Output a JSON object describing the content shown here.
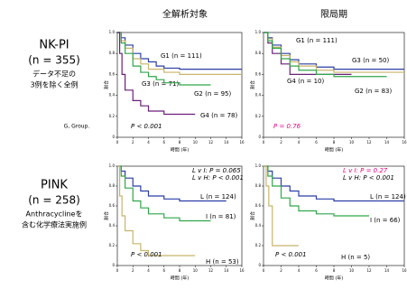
{
  "columns": [
    "全解析対象",
    "限局期"
  ],
  "row_labels": [
    [
      "NK-PI",
      "(n = 355)",
      "データ不足の",
      "3例を除く全例"
    ],
    [
      "PINK",
      "(n = 258)",
      "Anthracyclineを",
      "含む化学療法実施例"
    ]
  ],
  "note": "G, Group.",
  "chart_data": [
    {
      "type": "line",
      "step": true,
      "xlabel": "時間 (年)",
      "ylabel": "割合",
      "xlim": [
        0,
        16
      ],
      "xticks": [
        0,
        2,
        4,
        6,
        8,
        10,
        12,
        14,
        16
      ],
      "ylim": [
        0,
        1
      ],
      "yticks": [
        0,
        0.2,
        0.4,
        0.6,
        0.8,
        {
          "value": 1,
          "label": "1.0"
        }
      ],
      "series": [
        {
          "name": "G1 (n = 111)",
          "color": "#2b3fa6",
          "x": [
            0,
            0.5,
            1,
            2,
            3,
            4,
            5,
            6,
            8,
            10,
            16
          ],
          "values": [
            1,
            0.95,
            0.88,
            0.8,
            0.75,
            0.72,
            0.68,
            0.66,
            0.65,
            0.65,
            0.65
          ]
        },
        {
          "name": "G3 (n = 71)",
          "color": "#c8b56a",
          "x": [
            0,
            0.5,
            1,
            2,
            3,
            4,
            6,
            8,
            10,
            16
          ],
          "values": [
            1,
            0.92,
            0.85,
            0.75,
            0.7,
            0.65,
            0.62,
            0.6,
            0.6,
            0.6
          ]
        },
        {
          "name": "G2 (n = 95)",
          "color": "#2fa64a",
          "x": [
            0,
            0.5,
            1,
            2,
            3,
            4,
            5,
            6,
            8,
            12
          ],
          "values": [
            1,
            0.9,
            0.8,
            0.68,
            0.62,
            0.58,
            0.55,
            0.52,
            0.5,
            0.5
          ]
        },
        {
          "name": "G4 (n = 78)",
          "color": "#6a1f7a",
          "x": [
            0,
            0.3,
            0.6,
            1,
            2,
            3,
            4,
            6,
            10
          ],
          "values": [
            1,
            0.8,
            0.6,
            0.45,
            0.35,
            0.3,
            0.25,
            0.22,
            0.22
          ]
        }
      ],
      "annotations": [
        {
          "text": "P < 0.001",
          "color": "#000000"
        }
      ]
    },
    {
      "type": "line",
      "step": true,
      "xlabel": "時間 (年)",
      "ylabel": "割合",
      "xlim": [
        0,
        16
      ],
      "xticks": [
        0,
        2,
        4,
        6,
        8,
        10,
        12,
        14,
        16
      ],
      "ylim": [
        0,
        1
      ],
      "yticks": [
        0,
        0.2,
        0.4,
        0.6,
        0.8,
        {
          "value": 1,
          "label": "1.0"
        }
      ],
      "series": [
        {
          "name": "G1 (n = 111)",
          "color": "#2b3fa6",
          "x": [
            0,
            0.5,
            1,
            2,
            3,
            4,
            6,
            8,
            16
          ],
          "values": [
            1,
            0.95,
            0.88,
            0.8,
            0.74,
            0.7,
            0.67,
            0.65,
            0.65
          ]
        },
        {
          "name": "G3 (n = 50)",
          "color": "#c8b56a",
          "x": [
            0,
            0.5,
            1,
            2,
            3,
            4,
            6,
            8,
            16
          ],
          "values": [
            1,
            0.94,
            0.86,
            0.78,
            0.72,
            0.68,
            0.64,
            0.62,
            0.62
          ]
        },
        {
          "name": "G4 (n = 10)",
          "color": "#6a1f7a",
          "x": [
            0,
            0.5,
            1,
            2,
            3,
            10
          ],
          "values": [
            1,
            0.9,
            0.8,
            0.7,
            0.6,
            0.6
          ]
        },
        {
          "name": "G2 (n = 83)",
          "color": "#2fa64a",
          "x": [
            0,
            0.5,
            1,
            2,
            3,
            4,
            6,
            8,
            14
          ],
          "values": [
            1,
            0.92,
            0.85,
            0.75,
            0.68,
            0.64,
            0.6,
            0.58,
            0.58
          ]
        }
      ],
      "annotations": [
        {
          "text": "P = 0.76",
          "color": "#e6007e"
        }
      ]
    },
    {
      "type": "line",
      "step": true,
      "xlabel": "時間 (年)",
      "ylabel": "割合",
      "xlim": [
        0,
        16
      ],
      "xticks": [
        0,
        2,
        4,
        6,
        8,
        10,
        12,
        14,
        16
      ],
      "ylim": [
        0,
        1
      ],
      "yticks": [
        0,
        0.2,
        0.4,
        0.6,
        0.8,
        {
          "value": 1,
          "label": "1.0"
        }
      ],
      "series": [
        {
          "name": "L (n = 124)",
          "color": "#2b3fa6",
          "x": [
            0,
            0.5,
            1,
            2,
            3,
            4,
            6,
            8,
            14
          ],
          "values": [
            1,
            0.95,
            0.88,
            0.8,
            0.75,
            0.7,
            0.67,
            0.65,
            0.65
          ]
        },
        {
          "name": "I (n = 81)",
          "color": "#2fa64a",
          "x": [
            0,
            0.5,
            1,
            2,
            3,
            4,
            6,
            8,
            12
          ],
          "values": [
            1,
            0.9,
            0.78,
            0.65,
            0.58,
            0.52,
            0.48,
            0.45,
            0.45
          ]
        },
        {
          "name": "H (n = 53)",
          "color": "#c8b56a",
          "x": [
            0,
            0.3,
            0.6,
            1,
            2,
            3,
            4,
            10
          ],
          "values": [
            1,
            0.7,
            0.5,
            0.35,
            0.22,
            0.15,
            0.1,
            0.1
          ]
        }
      ],
      "annotations": [
        {
          "text": "L v I: P = 0.065",
          "color": "#000000"
        },
        {
          "text": "L v H: P < 0.001",
          "color": "#000000"
        },
        {
          "text": "P < 0.001",
          "color": "#000000"
        }
      ]
    },
    {
      "type": "line",
      "step": true,
      "xlabel": "時間 (年)",
      "ylabel": "割合",
      "xlim": [
        0,
        16
      ],
      "xticks": [
        0,
        2,
        4,
        6,
        8,
        10,
        12,
        14,
        16
      ],
      "ylim": [
        0,
        1
      ],
      "yticks": [
        0,
        0.2,
        0.4,
        0.6,
        0.8,
        {
          "value": 1,
          "label": "1.0"
        }
      ],
      "series": [
        {
          "name": "L (n = 124)",
          "color": "#2b3fa6",
          "x": [
            0,
            0.5,
            1,
            2,
            3,
            4,
            6,
            8,
            16
          ],
          "values": [
            1,
            0.95,
            0.88,
            0.8,
            0.75,
            0.7,
            0.67,
            0.65,
            0.65
          ]
        },
        {
          "name": "I (n = 66)",
          "color": "#2fa64a",
          "x": [
            0,
            0.5,
            1,
            2,
            3,
            4,
            6,
            8,
            12
          ],
          "values": [
            1,
            0.9,
            0.8,
            0.68,
            0.6,
            0.55,
            0.52,
            0.5,
            0.5
          ]
        },
        {
          "name": "H (n = 5)",
          "color": "#c8b56a",
          "x": [
            0,
            0.3,
            0.6,
            1,
            4
          ],
          "values": [
            1,
            0.8,
            0.6,
            0.2,
            0.2
          ]
        }
      ],
      "annotations": [
        {
          "text": "L v I: P = 0.27",
          "color": "#e6007e"
        },
        {
          "text": "L v H: P < 0.001",
          "color": "#000000"
        },
        {
          "text": "P < 0.001",
          "color": "#000000"
        }
      ]
    }
  ]
}
